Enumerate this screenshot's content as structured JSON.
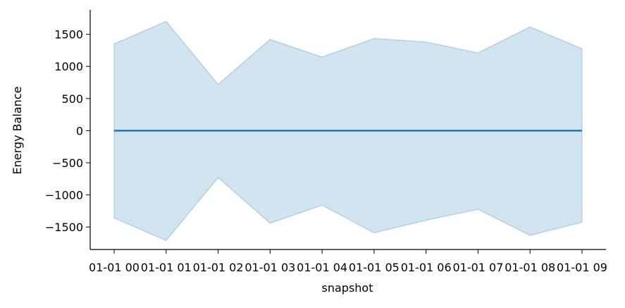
{
  "chart_data": {
    "type": "area",
    "title": "",
    "xlabel": "snapshot",
    "ylabel": "Energy Balance",
    "categories": [
      "01-01 00",
      "01-01 01",
      "01-01 02",
      "01-01 03",
      "01-01 04",
      "01-01 05",
      "01-01 06",
      "01-01 07",
      "01-01 08",
      "01-01 09"
    ],
    "ylim": [
      -1850,
      1880
    ],
    "yticks": [
      -1500,
      -1000,
      -500,
      0,
      500,
      1000,
      1500
    ],
    "ytick_labels": [
      "−1500",
      "−1000",
      "−500",
      "0",
      "500",
      "1000",
      "1500"
    ],
    "series": [
      {
        "values": [
          0,
          0,
          0,
          0,
          0,
          0,
          0,
          0,
          0,
          0
        ],
        "band_upper": [
          1350,
          1700,
          720,
          1420,
          1145,
          1435,
          1380,
          1210,
          1615,
          1275
        ],
        "band_lower": [
          -1360,
          -1710,
          -730,
          -1440,
          -1160,
          -1590,
          -1395,
          -1225,
          -1630,
          -1425
        ]
      }
    ],
    "colors": {
      "line": "#1f77b4",
      "band": "#1f77b4"
    },
    "grid": false,
    "legend": "none"
  }
}
